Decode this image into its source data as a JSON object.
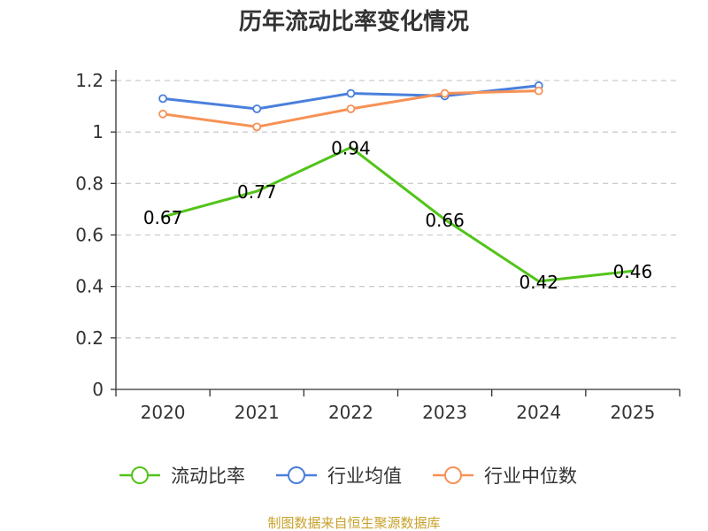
{
  "chart_data": {
    "type": "line",
    "title": "历年流动比率变化情况",
    "categories": [
      "2020",
      "2021",
      "2022",
      "2023",
      "2024",
      "2025"
    ],
    "ylim": [
      0,
      1.2
    ],
    "yticks": [
      0,
      0.2,
      0.4,
      0.6,
      0.8,
      1,
      1.2
    ],
    "ytick_labels": [
      "0",
      "0.2",
      "0.4",
      "0.6",
      "0.8",
      "1",
      "1.2"
    ],
    "grid": true,
    "legend_position": "bottom",
    "series": [
      {
        "name": "流动比率",
        "color": "#52c41a",
        "values": [
          0.67,
          0.77,
          0.94,
          0.66,
          0.42,
          0.46
        ],
        "labels": [
          "0.67",
          "0.77",
          "0.94",
          "0.66",
          "0.42",
          "0.46"
        ],
        "show_markers": false
      },
      {
        "name": "行业均值",
        "color": "#4a7fdc",
        "values": [
          1.13,
          1.09,
          1.15,
          1.14,
          1.18,
          null
        ],
        "show_markers": true
      },
      {
        "name": "行业中位数",
        "color": "#f79155",
        "values": [
          1.07,
          1.02,
          1.09,
          1.15,
          1.16,
          null
        ],
        "show_markers": true
      }
    ],
    "source": "制图数据来自恒生聚源数据库"
  }
}
